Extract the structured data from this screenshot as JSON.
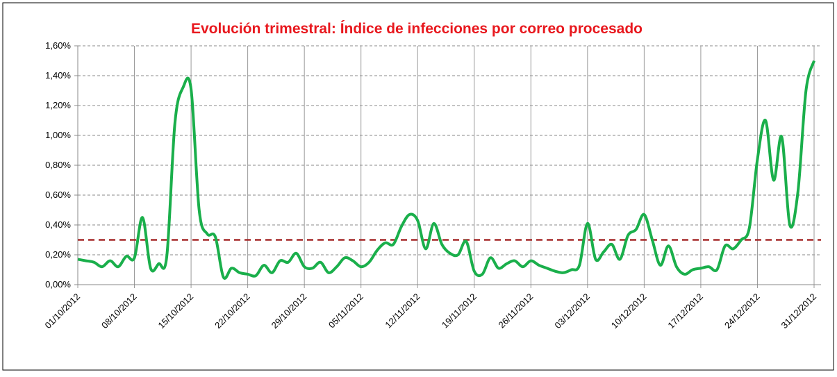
{
  "chart_data": {
    "type": "line",
    "title": "Evolución trimestral: Índice de infecciones por correo procesado",
    "categories": [
      "01/10/2012",
      null,
      null,
      null,
      null,
      null,
      null,
      "08/10/2012",
      null,
      null,
      null,
      null,
      null,
      null,
      "15/10/2012",
      null,
      null,
      null,
      null,
      null,
      null,
      "22/10/2012",
      null,
      null,
      null,
      null,
      null,
      null,
      "29/10/2012",
      null,
      null,
      null,
      null,
      null,
      null,
      "05/11/2012",
      null,
      null,
      null,
      null,
      null,
      null,
      "12/11/2012",
      null,
      null,
      null,
      null,
      null,
      null,
      "19/11/2012",
      null,
      null,
      null,
      null,
      null,
      null,
      "26/11/2012",
      null,
      null,
      null,
      null,
      null,
      null,
      "03/12/2012",
      null,
      null,
      null,
      null,
      null,
      null,
      "10/12/2012",
      null,
      null,
      null,
      null,
      null,
      null,
      "17/12/2012",
      null,
      null,
      null,
      null,
      null,
      null,
      "24/12/2012",
      null,
      null,
      null,
      null,
      null,
      null,
      "31/12/2012"
    ],
    "series": [
      {
        "color": "#1aaf4b",
        "values": [
          0.17,
          0.16,
          0.15,
          0.12,
          0.16,
          0.12,
          0.19,
          0.18,
          0.45,
          0.11,
          0.14,
          0.19,
          1.08,
          1.32,
          1.31,
          0.5,
          0.34,
          0.32,
          0.05,
          0.11,
          0.08,
          0.07,
          0.06,
          0.13,
          0.08,
          0.16,
          0.15,
          0.21,
          0.12,
          0.11,
          0.15,
          0.08,
          0.12,
          0.18,
          0.16,
          0.12,
          0.15,
          0.23,
          0.28,
          0.27,
          0.39,
          0.47,
          0.43,
          0.24,
          0.41,
          0.27,
          0.21,
          0.2,
          0.29,
          0.09,
          0.07,
          0.18,
          0.11,
          0.14,
          0.16,
          0.12,
          0.16,
          0.13,
          0.11,
          0.09,
          0.08,
          0.1,
          0.13,
          0.41,
          0.17,
          0.22,
          0.27,
          0.17,
          0.33,
          0.37,
          0.47,
          0.3,
          0.13,
          0.26,
          0.12,
          0.07,
          0.1,
          0.11,
          0.12,
          0.1,
          0.26,
          0.24,
          0.3,
          0.38,
          0.84,
          1.1,
          0.7,
          0.99,
          0.4,
          0.62,
          1.3,
          1.5
        ]
      }
    ],
    "reference_line": {
      "value": 0.3,
      "color": "#a52a2a"
    },
    "ylim": [
      0,
      1.6
    ],
    "yticks": [
      {
        "value": 0,
        "label": "0,00%"
      },
      {
        "value": 0.2,
        "label": "0,20%"
      },
      {
        "value": 0.4,
        "label": "0,40%"
      },
      {
        "value": 0.6,
        "label": "0,60%"
      },
      {
        "value": 0.8,
        "label": "0,80%"
      },
      {
        "value": 1.0,
        "label": "1,00%"
      },
      {
        "value": 1.2,
        "label": "1,20%"
      },
      {
        "value": 1.4,
        "label": "1,40%"
      },
      {
        "value": 1.6,
        "label": "1,60%"
      }
    ],
    "grid": true
  }
}
